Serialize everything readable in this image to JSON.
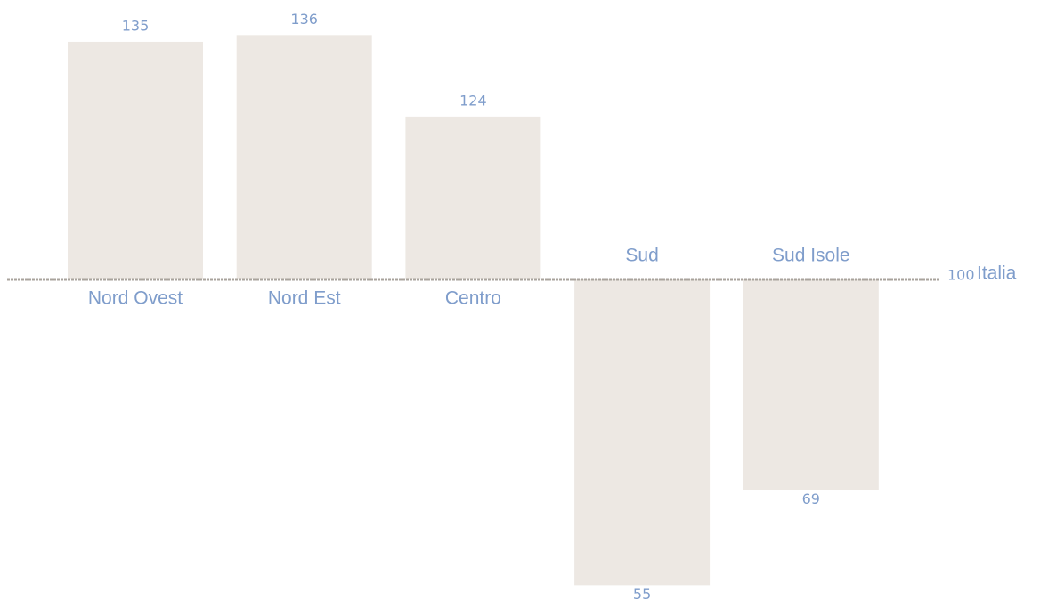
{
  "chart_data": {
    "type": "bar",
    "categories": [
      "Nord Ovest",
      "Nord Est",
      "Centro",
      "Sud",
      "Sud Isole"
    ],
    "values": [
      135,
      136,
      124,
      55,
      69
    ],
    "color": "#ede8e3",
    "baseline": 100,
    "baseline_label": "Italia"
  }
}
